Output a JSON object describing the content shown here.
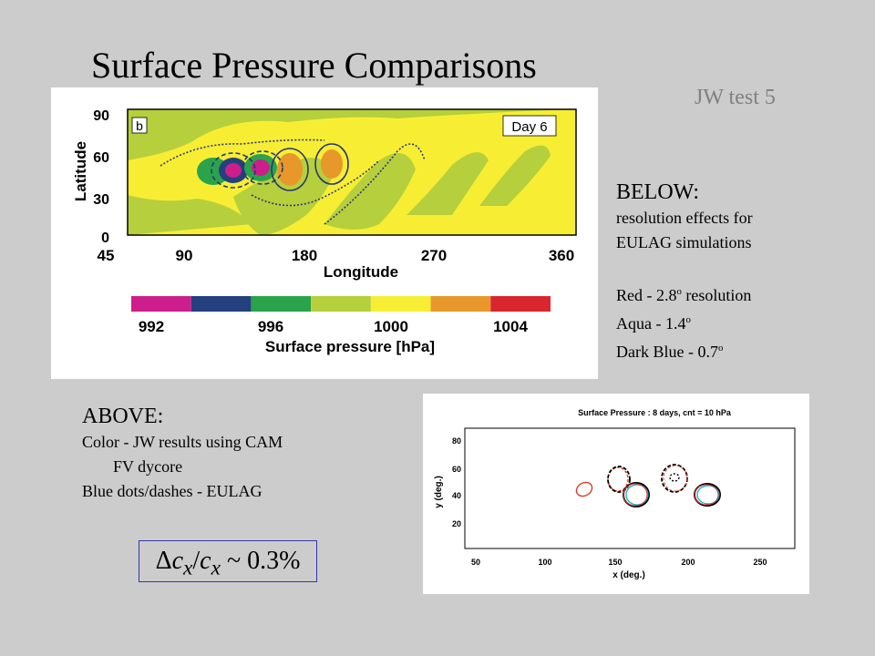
{
  "title": "Surface Pressure Comparisons",
  "subtitle": "JW test 5",
  "figure_top": {
    "panel_label": "b",
    "day_label": "Day 6",
    "ylabel": "Latitude",
    "xlabel": "Longitude",
    "y_ticks": [
      "90",
      "60",
      "30",
      "0"
    ],
    "x_ticks": [
      "45",
      "90",
      "180",
      "270",
      "360"
    ],
    "colorbar_colors": [
      "#cc1f8c",
      "#25407f",
      "#2aa34a",
      "#b6cf3c",
      "#f7ee34",
      "#e8972a",
      "#d9262f"
    ],
    "colorbar_ticks": [
      "992",
      "996",
      "1000",
      "1004"
    ],
    "colorbar_label": "Surface pressure [hPa]"
  },
  "figure_bottom": {
    "title": "Surface Pressure : 8 days,  cnt = 10 hPa",
    "ylabel": "y (deg.)",
    "xlabel": "x (deg.)",
    "y_ticks": [
      "80",
      "60",
      "40",
      "20"
    ],
    "x_ticks": [
      "50",
      "100",
      "150",
      "200",
      "250"
    ]
  },
  "below": {
    "heading": "BELOW:",
    "line1": "resolution effects for",
    "line2": "EULAG simulations",
    "red_text": "Red - 2.8",
    "red_sup": "o",
    "red_rest": " resolution",
    "aqua_text": "Aqua - 1.4",
    "aqua_sup": "o",
    "blue_text": "Dark Blue - 0.7",
    "blue_sup": "o"
  },
  "above": {
    "heading": "ABOVE:",
    "line1": "Color - JW results using CAM",
    "line2": "FV dycore",
    "line3": "Blue dots/dashes - EULAG"
  },
  "formula": {
    "delta": "Δ",
    "c1": "c",
    "sub1": "x",
    "slash": "/",
    "c2": "c",
    "sub2": "x",
    "rest": " ~ 0.3%"
  }
}
